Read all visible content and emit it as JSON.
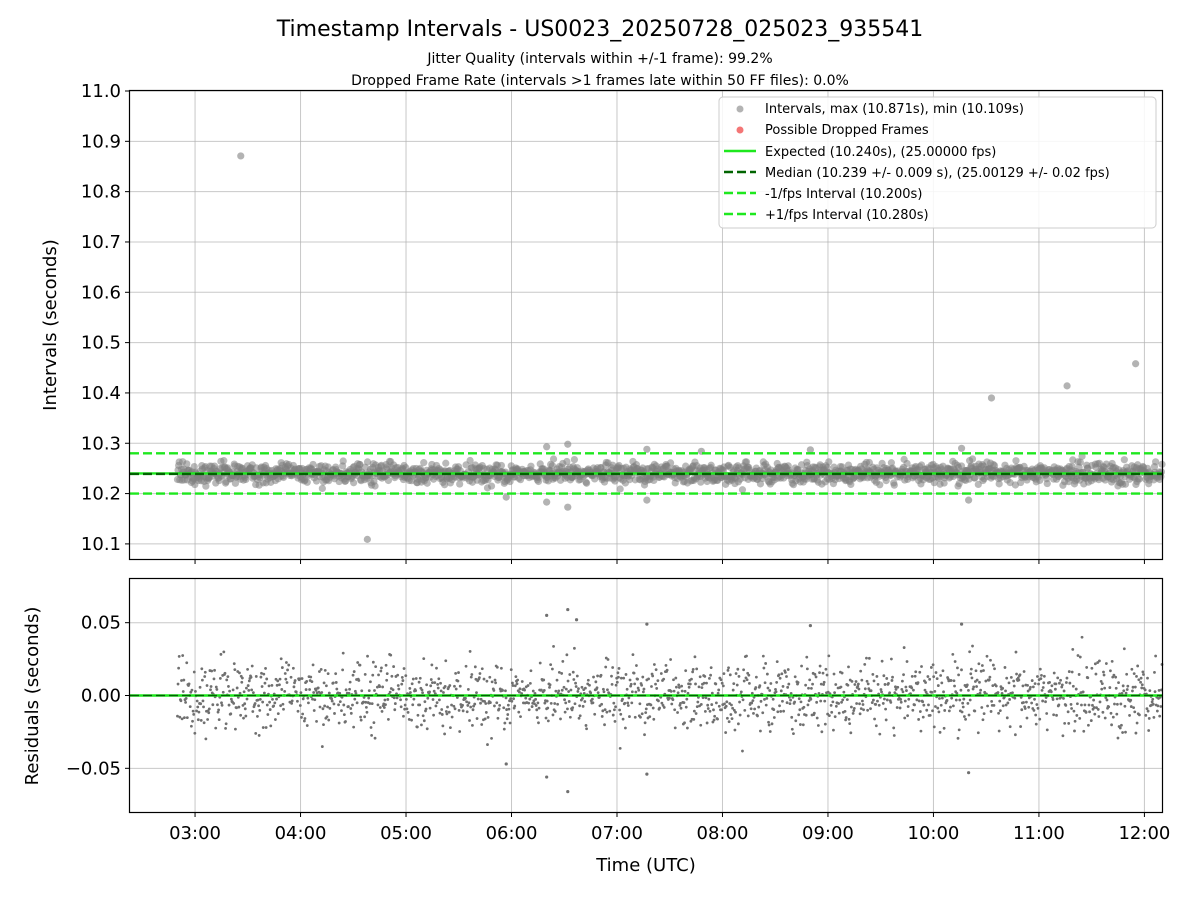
{
  "chart_data": {
    "type": "scatter",
    "title": "Timestamp Intervals - US0023_20250728_025023_935541",
    "subtitle_lines": [
      "Jitter Quality (intervals within +/-1 frame): 99.2%",
      "Dropped Frame Rate (intervals >1 frames late within 50 FF files): 0.0%"
    ],
    "xlabel": "Time (UTC)",
    "x_ticks": [
      "03:00",
      "04:00",
      "05:00",
      "06:00",
      "07:00",
      "08:00",
      "09:00",
      "10:00",
      "11:00",
      "12:00"
    ],
    "xlim": [
      "02:23",
      "12:10"
    ],
    "data_range": [
      "02:50",
      "12:10"
    ],
    "grid": true,
    "top_panel": {
      "ylabel": "Intervals (seconds)",
      "ylim": [
        10.07,
        11.0
      ],
      "y_ticks": [
        "10.1",
        "10.2",
        "10.3",
        "10.4",
        "10.5",
        "10.6",
        "10.7",
        "10.8",
        "10.9",
        "11.0"
      ],
      "legend_position": "upper right",
      "series": [
        {
          "name": "Intervals, max (10.871s), min (10.109s)",
          "kind": "points",
          "color": "#808080",
          "typical_center": 10.24,
          "typical_spread": 0.015,
          "outliers": [
            {
              "x": "03:26",
              "y": 10.871
            },
            {
              "x": "04:38",
              "y": 10.109
            },
            {
              "x": "05:57",
              "y": 10.193
            },
            {
              "x": "06:20",
              "y": 10.293
            },
            {
              "x": "06:20",
              "y": 10.183
            },
            {
              "x": "06:32",
              "y": 10.298
            },
            {
              "x": "06:32",
              "y": 10.173
            },
            {
              "x": "07:17",
              "y": 10.288
            },
            {
              "x": "07:17",
              "y": 10.187
            },
            {
              "x": "07:48",
              "y": 10.284
            },
            {
              "x": "08:50",
              "y": 10.287
            },
            {
              "x": "10:16",
              "y": 10.29
            },
            {
              "x": "10:20",
              "y": 10.187
            },
            {
              "x": "10:33",
              "y": 10.39
            },
            {
              "x": "11:16",
              "y": 10.414
            },
            {
              "x": "11:55",
              "y": 10.458
            }
          ]
        },
        {
          "name": "Possible Dropped Frames",
          "kind": "points",
          "color": "#f03c3c",
          "values": []
        },
        {
          "name": "Expected (10.240s), (25.00000 fps)",
          "kind": "hline",
          "y": 10.24,
          "color": "#1ee81e",
          "style": "solid"
        },
        {
          "name": "Median (10.239 +/- 0.009 s), (25.00129 +/- 0.02 fps)",
          "kind": "hline",
          "y": 10.239,
          "color": "#006400",
          "style": "dashed"
        },
        {
          "name": "-1/fps Interval (10.200s)",
          "kind": "hline",
          "y": 10.2,
          "color": "#1ee81e",
          "style": "dashed"
        },
        {
          "name": "+1/fps Interval (10.280s)",
          "kind": "hline",
          "y": 10.28,
          "color": "#1ee81e",
          "style": "dashed"
        }
      ]
    },
    "bottom_panel": {
      "ylabel": "Residuals (seconds)",
      "ylim": [
        -0.08,
        0.08
      ],
      "y_ticks": [
        "0.05",
        "0.00",
        "−0.05"
      ],
      "zero_line_color": "#1ee81e",
      "series": [
        {
          "kind": "points",
          "color": "#707070",
          "typical_spread": 0.012,
          "outliers": [
            {
              "x": "06:20",
              "y": 0.055
            },
            {
              "x": "06:32",
              "y": 0.059
            },
            {
              "x": "06:37",
              "y": 0.052
            },
            {
              "x": "07:17",
              "y": 0.049
            },
            {
              "x": "08:50",
              "y": 0.048
            },
            {
              "x": "10:16",
              "y": 0.049
            },
            {
              "x": "05:57",
              "y": -0.047
            },
            {
              "x": "06:20",
              "y": -0.056
            },
            {
              "x": "06:32",
              "y": -0.066
            },
            {
              "x": "07:17",
              "y": -0.054
            },
            {
              "x": "10:20",
              "y": -0.053
            }
          ]
        }
      ]
    }
  }
}
